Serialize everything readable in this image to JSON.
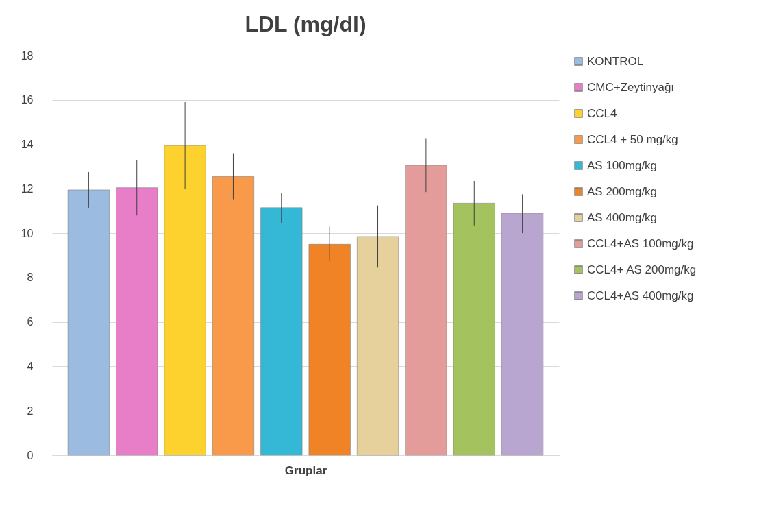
{
  "chart_data": {
    "type": "bar",
    "title": "LDL (mg/dl)",
    "xlabel": "Gruplar",
    "categories": [
      null
    ],
    "ylim": [
      0,
      18
    ],
    "yticks": [
      0,
      2,
      4,
      6,
      8,
      10,
      12,
      14,
      16,
      18
    ],
    "grid": "y",
    "legend": "right",
    "series": [
      {
        "name": "KONTROL",
        "color": "#9bbbe0",
        "values": [
          11.95
        ],
        "errors": [
          [
            11.15,
            12.75
          ]
        ]
      },
      {
        "name": "CMC+Zeytinyağı",
        "color": "#e87dc8",
        "values": [
          12.05
        ],
        "errors": [
          [
            10.8,
            13.3
          ]
        ]
      },
      {
        "name": "CCL4",
        "color": "#fdd22f",
        "values": [
          13.95
        ],
        "errors": [
          [
            12.0,
            15.9
          ]
        ]
      },
      {
        "name": "CCL4 + 50 mg/kg",
        "color": "#f9994a",
        "values": [
          12.55
        ],
        "errors": [
          [
            11.5,
            13.6
          ]
        ]
      },
      {
        "name": "AS 100mg/kg",
        "color": "#35b8d6",
        "values": [
          11.15
        ],
        "errors": [
          [
            10.45,
            11.8
          ]
        ]
      },
      {
        "name": "AS 200mg/kg",
        "color": "#ef8326",
        "values": [
          9.5
        ],
        "errors": [
          [
            8.75,
            10.3
          ]
        ]
      },
      {
        "name": "AS 400mg/kg",
        "color": "#e6d19c",
        "values": [
          9.85
        ],
        "errors": [
          [
            8.45,
            11.25
          ]
        ]
      },
      {
        "name": "CCL4+AS 100mg/kg",
        "color": "#e49c9a",
        "values": [
          13.05
        ],
        "errors": [
          [
            11.85,
            14.25
          ]
        ]
      },
      {
        "name": "CCL4+ AS 200mg/kg",
        "color": "#a4c25d",
        "values": [
          11.35
        ],
        "errors": [
          [
            10.35,
            12.35
          ]
        ]
      },
      {
        "name": "CCL4+AS 400mg/kg",
        "color": "#b9a6d0",
        "values": [
          10.9
        ],
        "errors": [
          [
            10.0,
            11.75
          ]
        ]
      }
    ]
  }
}
